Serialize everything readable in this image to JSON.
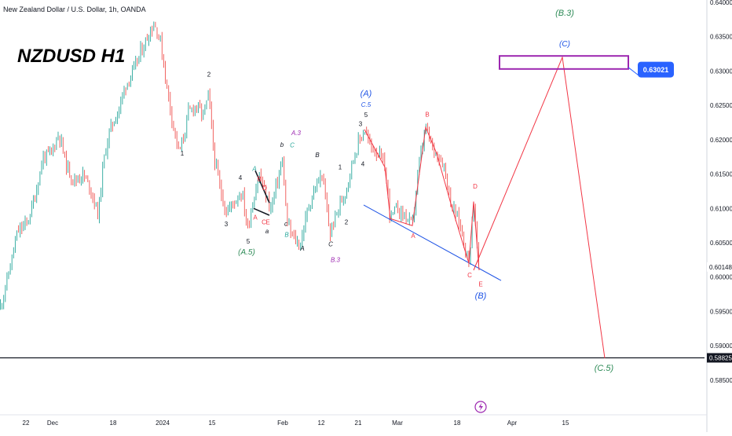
{
  "header": {
    "instrument": "New Zealand Dollar / U.S. Dollar, 1h, OANDA",
    "big_title": "NZDUSD H1"
  },
  "chart_data": {
    "type": "line",
    "ylim": [
      0.5835,
      0.64
    ],
    "y_ticks": [
      {
        "v": 0.64,
        "label": "0.64000"
      },
      {
        "v": 0.635,
        "label": "0.63500"
      },
      {
        "v": 0.63,
        "label": "0.63000"
      },
      {
        "v": 0.625,
        "label": "0.62500"
      },
      {
        "v": 0.62,
        "label": "0.62000"
      },
      {
        "v": 0.615,
        "label": "0.61500"
      },
      {
        "v": 0.61,
        "label": "0.61000"
      },
      {
        "v": 0.605,
        "label": "0.60500"
      },
      {
        "v": 0.6,
        "label": "0.60000"
      },
      {
        "v": 0.595,
        "label": "0.59500"
      },
      {
        "v": 0.59,
        "label": "0.59000"
      },
      {
        "v": 0.585,
        "label": "0.58500"
      }
    ],
    "x_ticks": [
      "22",
      "Dec",
      "18",
      "2024",
      "15",
      "Feb",
      "12",
      "21",
      "Mar",
      "18",
      "Apr",
      "15"
    ],
    "price_tags": [
      {
        "v": 0.60148,
        "label": "0.60148",
        "style": "plain"
      },
      {
        "v": 0.58825,
        "label": "0.58825",
        "style": "dark"
      }
    ],
    "horizontal_line": {
      "v": 0.58825,
      "color": "#131722"
    },
    "target_box": {
      "from": 0.6303,
      "to": 0.6322,
      "color": "#9c27b0"
    },
    "target_callout": {
      "v": 0.63021,
      "label": "0.63021",
      "color": "#2962ff"
    },
    "projection": {
      "color": "#f23645",
      "points": [
        [
          603,
          0.601
        ],
        [
          716,
          0.632
        ],
        [
          770,
          0.5882
        ]
      ]
    },
    "wave_line": {
      "color": "#f23645",
      "points": [
        [
          464,
          0.6215
        ],
        [
          490,
          0.616
        ],
        [
          497,
          0.6085
        ],
        [
          525,
          0.6075
        ],
        [
          542,
          0.6218
        ],
        [
          556,
          0.618
        ],
        [
          575,
          0.6103
        ],
        [
          597,
          0.602
        ],
        [
          603,
          0.611
        ],
        [
          610,
          0.601
        ]
      ]
    },
    "trendline": {
      "color": "#1e53e5",
      "points": [
        [
          463,
          0.6105
        ],
        [
          638,
          0.5995
        ]
      ]
    },
    "pattern_lines": [
      {
        "color": "#131722",
        "points": [
          [
            325,
            0.6155
          ],
          [
            343,
            0.6108
          ]
        ]
      },
      {
        "color": "#131722",
        "points": [
          [
            323,
            0.61
          ],
          [
            343,
            0.609
          ]
        ]
      }
    ],
    "price_path": [
      [
        0,
        0.5955
      ],
      [
        10,
        0.6
      ],
      [
        22,
        0.6065
      ],
      [
        35,
        0.608
      ],
      [
        45,
        0.612
      ],
      [
        55,
        0.6175
      ],
      [
        65,
        0.618
      ],
      [
        75,
        0.621
      ],
      [
        85,
        0.616
      ],
      [
        95,
        0.614
      ],
      [
        105,
        0.615
      ],
      [
        115,
        0.613
      ],
      [
        125,
        0.609
      ],
      [
        132,
        0.617
      ],
      [
        140,
        0.6215
      ],
      [
        150,
        0.624
      ],
      [
        160,
        0.628
      ],
      [
        170,
        0.63
      ],
      [
        180,
        0.633
      ],
      [
        188,
        0.635
      ],
      [
        196,
        0.637
      ],
      [
        204,
        0.6345
      ],
      [
        212,
        0.628
      ],
      [
        220,
        0.6225
      ],
      [
        228,
        0.618
      ],
      [
        233,
        0.62
      ],
      [
        240,
        0.624
      ],
      [
        250,
        0.625
      ],
      [
        258,
        0.6235
      ],
      [
        266,
        0.6265
      ],
      [
        272,
        0.618
      ],
      [
        280,
        0.613
      ],
      [
        288,
        0.6095
      ],
      [
        298,
        0.611
      ],
      [
        308,
        0.6125
      ],
      [
        315,
        0.607
      ],
      [
        322,
        0.611
      ],
      [
        330,
        0.615
      ],
      [
        338,
        0.612
      ],
      [
        345,
        0.61
      ],
      [
        355,
        0.615
      ],
      [
        360,
        0.617
      ],
      [
        365,
        0.608
      ],
      [
        372,
        0.606
      ],
      [
        382,
        0.6045
      ],
      [
        392,
        0.61
      ],
      [
        400,
        0.6125
      ],
      [
        410,
        0.615
      ],
      [
        420,
        0.6062
      ],
      [
        430,
        0.6098
      ],
      [
        440,
        0.6125
      ],
      [
        448,
        0.6165
      ],
      [
        456,
        0.6195
      ],
      [
        464,
        0.6215
      ],
      [
        472,
        0.619
      ],
      [
        482,
        0.618
      ],
      [
        490,
        0.616
      ],
      [
        497,
        0.6085
      ],
      [
        505,
        0.61
      ],
      [
        515,
        0.609
      ],
      [
        525,
        0.6075
      ],
      [
        533,
        0.616
      ],
      [
        542,
        0.6218
      ],
      [
        550,
        0.619
      ],
      [
        556,
        0.618
      ],
      [
        565,
        0.6165
      ],
      [
        575,
        0.6103
      ],
      [
        585,
        0.608
      ],
      [
        597,
        0.602
      ],
      [
        603,
        0.611
      ],
      [
        607,
        0.605
      ],
      [
        610,
        0.601
      ]
    ],
    "wave_labels": [
      {
        "x": 266,
        "v": 0.6295,
        "t": "2",
        "c": "#131722",
        "s": 8,
        "it": false
      },
      {
        "x": 232,
        "v": 0.618,
        "t": "1",
        "c": "#131722",
        "s": 8,
        "it": false
      },
      {
        "x": 306,
        "v": 0.6145,
        "t": "4",
        "c": "#131722",
        "s": 8,
        "it": false
      },
      {
        "x": 288,
        "v": 0.6077,
        "t": "3",
        "c": "#131722",
        "s": 8,
        "it": false
      },
      {
        "x": 316,
        "v": 0.6052,
        "t": "5",
        "c": "#131722",
        "s": 8,
        "it": false
      },
      {
        "x": 314,
        "v": 0.6037,
        "t": "(A.5)",
        "c": "#2e8b57",
        "s": 10,
        "it": true
      },
      {
        "x": 324,
        "v": 0.6158,
        "t": "A",
        "c": "#26a69a",
        "s": 8,
        "it": true
      },
      {
        "x": 330,
        "v": 0.6143,
        "t": "B",
        "c": "#f23645",
        "s": 8,
        "it": false
      },
      {
        "x": 337,
        "v": 0.613,
        "t": "D",
        "c": "#f23645",
        "s": 8,
        "it": false
      },
      {
        "x": 325,
        "v": 0.6087,
        "t": "A",
        "c": "#f23645",
        "s": 8,
        "it": false
      },
      {
        "x": 336,
        "v": 0.608,
        "t": "C",
        "c": "#f23645",
        "s": 8,
        "it": false
      },
      {
        "x": 341,
        "v": 0.608,
        "t": "E",
        "c": "#f23645",
        "s": 8,
        "it": false
      },
      {
        "x": 340,
        "v": 0.6067,
        "t": "a",
        "c": "#131722",
        "s": 8,
        "it": true
      },
      {
        "x": 365,
        "v": 0.6062,
        "t": "B",
        "c": "#26a69a",
        "s": 8,
        "it": true
      },
      {
        "x": 377,
        "v": 0.621,
        "t": "A.3",
        "c": "#9c27b0",
        "s": 8,
        "it": true
      },
      {
        "x": 359,
        "v": 0.6193,
        "t": "b",
        "c": "#131722",
        "s": 8,
        "it": true
      },
      {
        "x": 372,
        "v": 0.6192,
        "t": "C",
        "c": "#26a69a",
        "s": 8,
        "it": true
      },
      {
        "x": 364,
        "v": 0.6078,
        "t": "c",
        "c": "#131722",
        "s": 8,
        "it": true
      },
      {
        "x": 385,
        "v": 0.6042,
        "t": "A",
        "c": "#131722",
        "s": 8,
        "it": true
      },
      {
        "x": 404,
        "v": 0.6178,
        "t": "B",
        "c": "#131722",
        "s": 8,
        "it": true
      },
      {
        "x": 421,
        "v": 0.6048,
        "t": "C",
        "c": "#131722",
        "s": 8,
        "it": true
      },
      {
        "x": 427,
        "v": 0.6025,
        "t": "B.3",
        "c": "#9c27b0",
        "s": 8,
        "it": true
      },
      {
        "x": 433,
        "v": 0.616,
        "t": "1",
        "c": "#131722",
        "s": 8,
        "it": false
      },
      {
        "x": 441,
        "v": 0.608,
        "t": "2",
        "c": "#131722",
        "s": 8,
        "it": false
      },
      {
        "x": 459,
        "v": 0.6223,
        "t": "3",
        "c": "#131722",
        "s": 8,
        "it": false
      },
      {
        "x": 462,
        "v": 0.6165,
        "t": "4",
        "c": "#131722",
        "s": 8,
        "it": false
      },
      {
        "x": 466,
        "v": 0.6236,
        "t": "5",
        "c": "#131722",
        "s": 8,
        "it": false
      },
      {
        "x": 466,
        "v": 0.6251,
        "t": "C.5",
        "c": "#1e53e5",
        "s": 8,
        "it": true
      },
      {
        "x": 466,
        "v": 0.6268,
        "t": "(A)",
        "c": "#1e53e5",
        "s": 11,
        "it": true
      },
      {
        "x": 544,
        "v": 0.6237,
        "t": "B",
        "c": "#f23645",
        "s": 8,
        "it": false
      },
      {
        "x": 526,
        "v": 0.606,
        "t": "A",
        "c": "#f23645",
        "s": 8,
        "it": false
      },
      {
        "x": 605,
        "v": 0.6132,
        "t": "D",
        "c": "#f23645",
        "s": 8,
        "it": false
      },
      {
        "x": 598,
        "v": 0.6003,
        "t": "C",
        "c": "#f23645",
        "s": 8,
        "it": false
      },
      {
        "x": 612,
        "v": 0.599,
        "t": "E",
        "c": "#f23645",
        "s": 8,
        "it": false
      },
      {
        "x": 612,
        "v": 0.5973,
        "t": "(B)",
        "c": "#1e53e5",
        "s": 11,
        "it": true
      },
      {
        "x": 719,
        "v": 0.6385,
        "t": "(B.3)",
        "c": "#2e8b57",
        "s": 11,
        "it": true
      },
      {
        "x": 719,
        "v": 0.634,
        "t": "(C)",
        "c": "#1e53e5",
        "s": 10,
        "it": true
      },
      {
        "x": 769,
        "v": 0.5868,
        "t": "(C.5)",
        "c": "#2e8b57",
        "s": 11,
        "it": true
      }
    ]
  },
  "footer": {
    "event_icon": "lightning-icon"
  }
}
